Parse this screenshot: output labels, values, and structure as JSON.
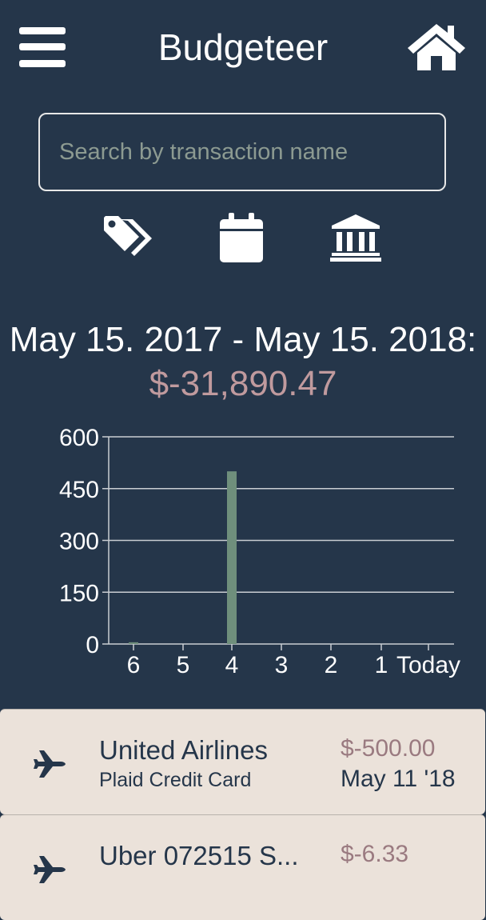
{
  "header": {
    "title": "Budgeteer",
    "menu_icon": "hamburger-menu-icon",
    "home_icon": "home-icon"
  },
  "search": {
    "placeholder": "Search by transaction name",
    "value": ""
  },
  "filters": [
    {
      "icon": "tags-icon"
    },
    {
      "icon": "calendar-icon"
    },
    {
      "icon": "bank-icon"
    }
  ],
  "summary": {
    "range": "May 15. 2017 - May 15. 2018:",
    "total": "$-31,890.47"
  },
  "chart_data": {
    "type": "bar",
    "categories": [
      "6",
      "5",
      "4",
      "3",
      "2",
      "1",
      "Today"
    ],
    "values": [
      5,
      0,
      500,
      0,
      0,
      0,
      0
    ],
    "y_ticks": [
      "0",
      "150",
      "300",
      "450",
      "600"
    ],
    "ylim": [
      0,
      600
    ],
    "grid": true,
    "bar_color": "#6f8f7c"
  },
  "transactions": [
    {
      "icon": "airplane-icon",
      "name": "United Airlines",
      "account": "Plaid Credit Card",
      "amount": "$-500.00",
      "date": "May 11 '18"
    },
    {
      "icon": "airplane-icon",
      "name": "Uber 072515 S...",
      "account": "",
      "amount": "$-6.33",
      "date": ""
    }
  ],
  "colors": {
    "background": "#25364a",
    "text": "#ffffff",
    "negative_amount": "#c09a9e",
    "card_background": "#ebe2da",
    "card_text": "#25364a"
  }
}
